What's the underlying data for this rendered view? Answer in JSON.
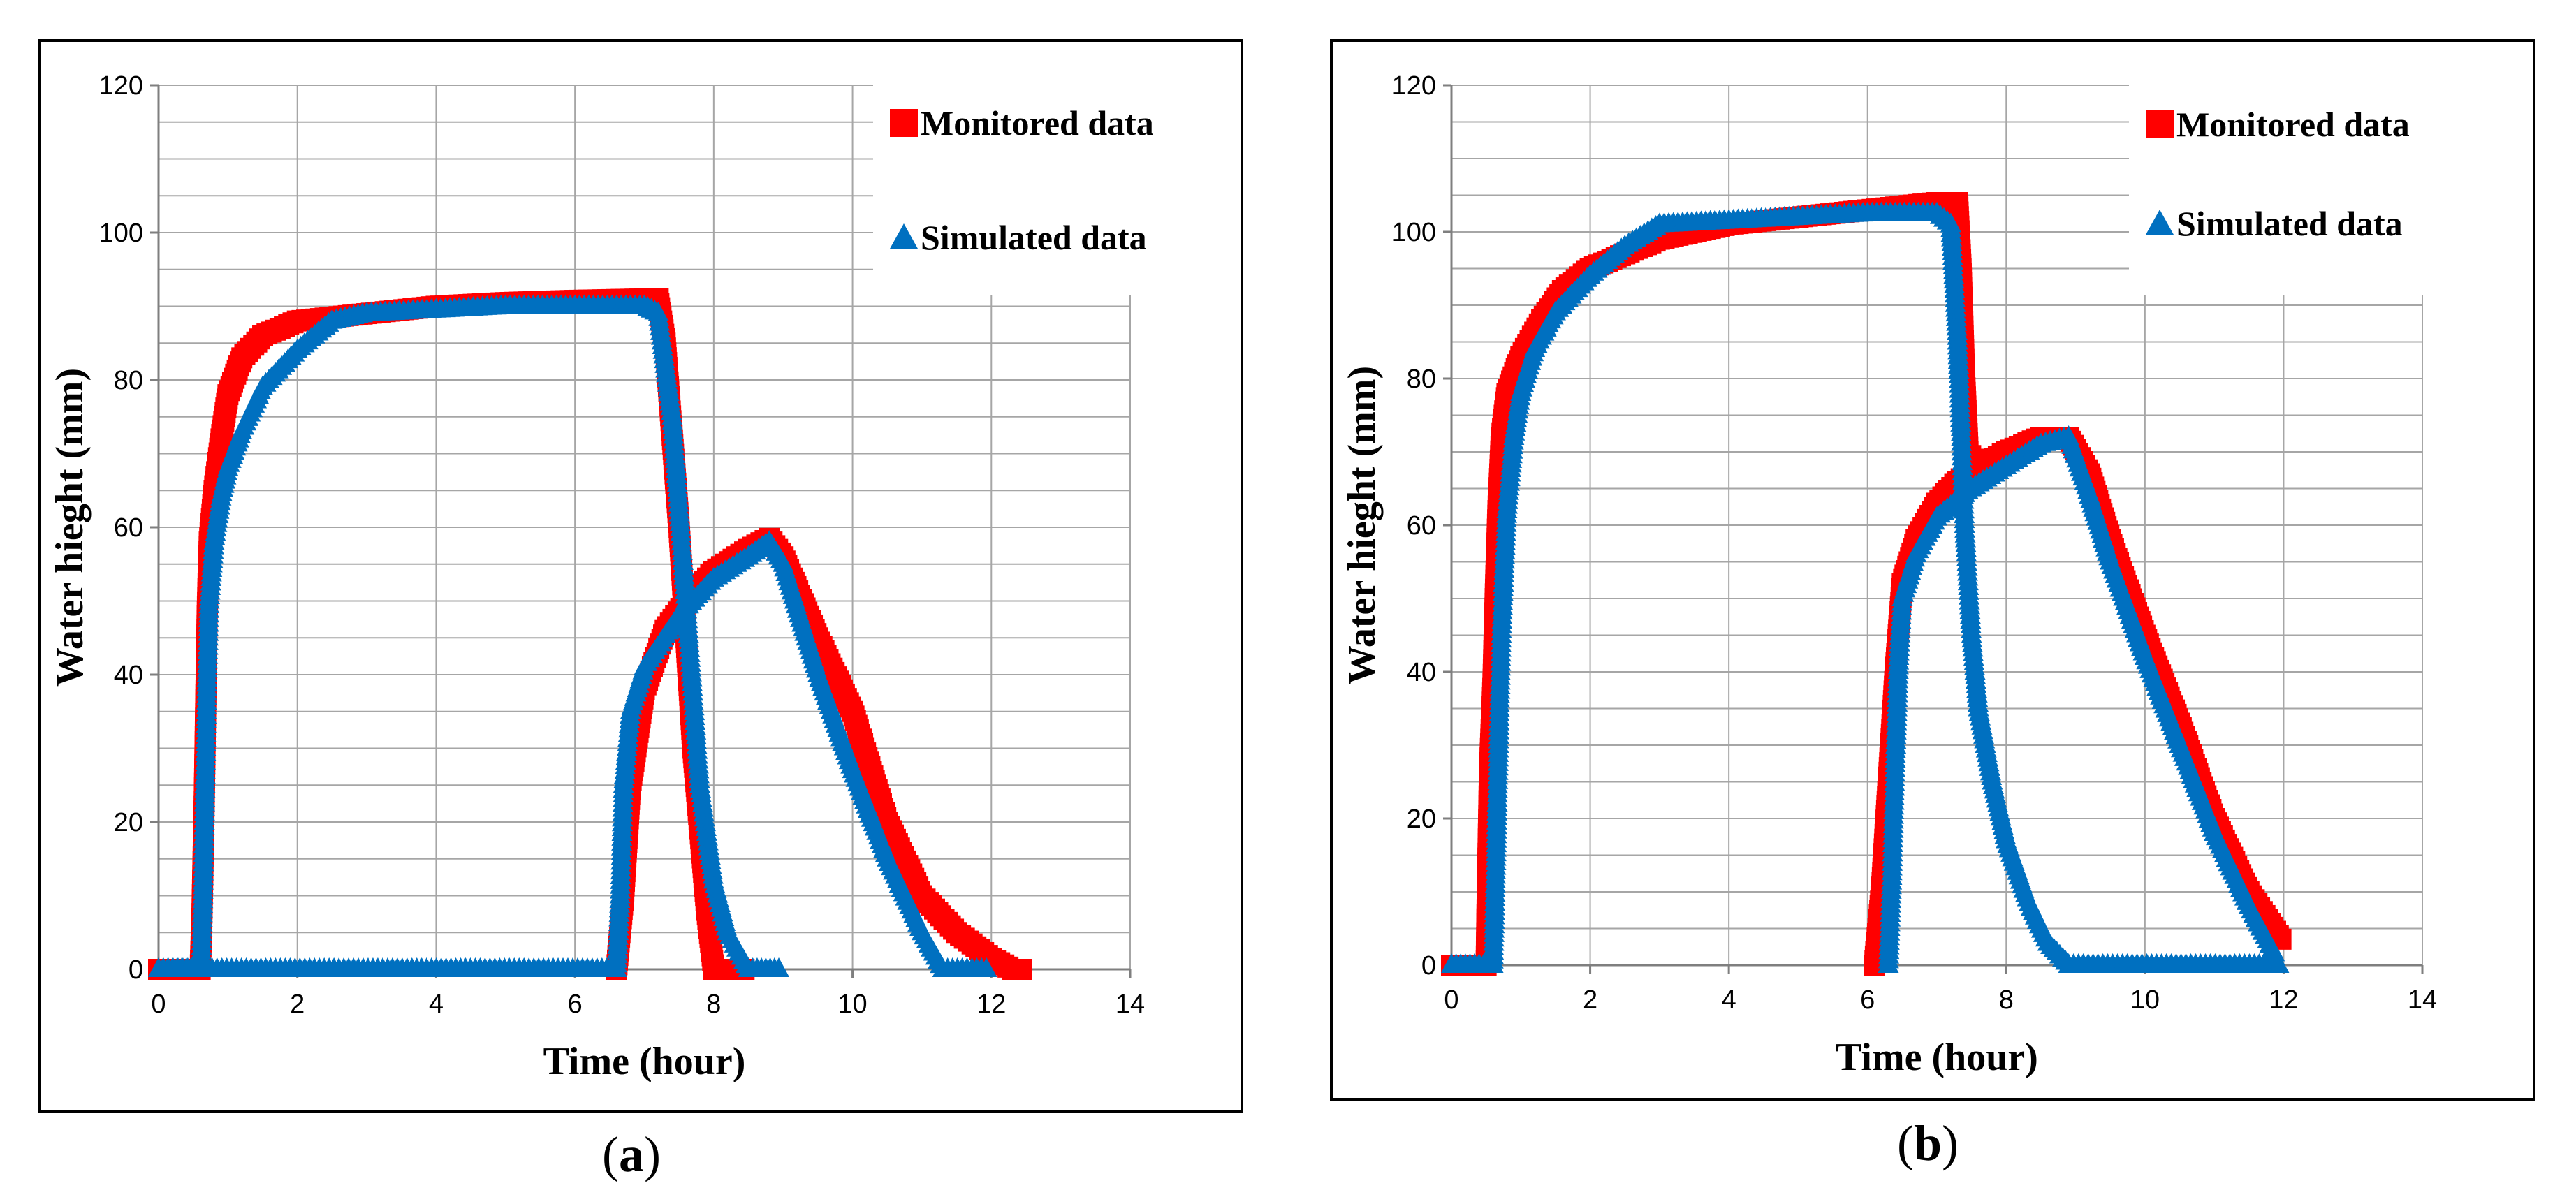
{
  "colors": {
    "monitored": "#ff0000",
    "simulated": "#0070c0",
    "grid": "#a6a6a6",
    "axis": "#7f7f7f"
  },
  "panels": [
    {
      "caption_open": "(",
      "caption_letter": "a",
      "caption_close": ")"
    },
    {
      "caption_open": "(",
      "caption_letter": "b",
      "caption_close": ")"
    }
  ],
  "chart_data": [
    {
      "type": "scatter",
      "title": "",
      "xlabel": "Time (hour)",
      "ylabel": "Water hieght (mm)",
      "xlim": [
        0,
        14
      ],
      "ylim": [
        0,
        120
      ],
      "xticks": [
        "0",
        "2",
        "4",
        "6",
        "8",
        "10",
        "12",
        "14"
      ],
      "yticks": [
        "0",
        "20",
        "40",
        "60",
        "80",
        "100",
        "120"
      ],
      "minor_y_step": 5,
      "legend": {
        "position": "top-right",
        "entries": [
          "Monitored data",
          "Simulated data"
        ]
      },
      "series": [
        {
          "name": "Monitored data",
          "marker": "square",
          "color": "#ff0000",
          "group": "rise",
          "points": [
            [
              0,
              0
            ],
            [
              0.6,
              0
            ],
            [
              0.62,
              5
            ],
            [
              0.64,
              14
            ],
            [
              0.66,
              24
            ],
            [
              0.68,
              36
            ],
            [
              0.7,
              48
            ],
            [
              0.73,
              58
            ],
            [
              0.8,
              65
            ],
            [
              0.9,
              72
            ],
            [
              1.0,
              78
            ],
            [
              1.2,
              83
            ],
            [
              1.5,
              86
            ],
            [
              2,
              88
            ],
            [
              3,
              89
            ],
            [
              4,
              90
            ],
            [
              5,
              90.5
            ],
            [
              6,
              90.8
            ],
            [
              7,
              91
            ],
            [
              7.2,
              91
            ],
            [
              7.3,
              85
            ],
            [
              7.5,
              60
            ],
            [
              7.7,
              30
            ],
            [
              7.9,
              8
            ],
            [
              8.0,
              0
            ],
            [
              8.5,
              0
            ]
          ]
        },
        {
          "name": "Monitored data",
          "marker": "square",
          "color": "#ff0000",
          "group": "outflow",
          "points": [
            [
              6.6,
              0
            ],
            [
              6.7,
              10
            ],
            [
              6.8,
              25
            ],
            [
              7.0,
              38
            ],
            [
              7.3,
              46
            ],
            [
              7.6,
              50
            ],
            [
              8,
              54
            ],
            [
              8.5,
              57
            ],
            [
              8.8,
              58.5
            ],
            [
              9.0,
              56
            ],
            [
              9.5,
              45
            ],
            [
              10,
              35
            ],
            [
              10.5,
              20
            ],
            [
              11,
              10
            ],
            [
              11.5,
              5
            ],
            [
              12,
              1.5
            ],
            [
              12.3,
              0
            ],
            [
              12.5,
              0
            ]
          ]
        },
        {
          "name": "Simulated data",
          "marker": "triangle",
          "color": "#0070c0",
          "group": "rise",
          "points": [
            [
              0,
              0
            ],
            [
              0.6,
              0
            ],
            [
              0.62,
              3
            ],
            [
              0.64,
              10
            ],
            [
              0.66,
              20
            ],
            [
              0.68,
              30
            ],
            [
              0.7,
              40
            ],
            [
              0.73,
              50
            ],
            [
              0.8,
              58
            ],
            [
              0.9,
              64
            ],
            [
              1.0,
              68
            ],
            [
              1.2,
              73
            ],
            [
              1.5,
              79
            ],
            [
              2,
              84
            ],
            [
              2.5,
              88
            ],
            [
              3,
              89
            ],
            [
              4,
              89.5
            ],
            [
              5,
              90
            ],
            [
              6,
              90
            ],
            [
              7,
              90
            ],
            [
              7.2,
              89
            ],
            [
              7.4,
              75
            ],
            [
              7.6,
              50
            ],
            [
              7.8,
              25
            ],
            [
              8.0,
              12
            ],
            [
              8.2,
              5
            ],
            [
              8.5,
              0
            ],
            [
              9,
              0
            ]
          ]
        },
        {
          "name": "Simulated data",
          "marker": "triangle",
          "color": "#0070c0",
          "group": "outflow",
          "points": [
            [
              0,
              0
            ],
            [
              6.6,
              0
            ],
            [
              6.65,
              10
            ],
            [
              6.7,
              25
            ],
            [
              6.8,
              35
            ],
            [
              7.0,
              41
            ],
            [
              7.5,
              48
            ],
            [
              8,
              53
            ],
            [
              8.5,
              56
            ],
            [
              8.8,
              58
            ],
            [
              9.0,
              55
            ],
            [
              9.5,
              40
            ],
            [
              10,
              27
            ],
            [
              10.5,
              15
            ],
            [
              11,
              5
            ],
            [
              11.3,
              0
            ],
            [
              12,
              0
            ]
          ]
        }
      ]
    },
    {
      "type": "scatter",
      "title": "",
      "xlabel": "Time (hour)",
      "ylabel": "Water hieght (mm)",
      "xlim": [
        0,
        14
      ],
      "ylim": [
        0,
        120
      ],
      "xticks": [
        "0",
        "2",
        "4",
        "6",
        "8",
        "10",
        "12",
        "14"
      ],
      "yticks": [
        "0",
        "20",
        "40",
        "60",
        "80",
        "100",
        "120"
      ],
      "minor_y_step": 5,
      "legend": {
        "position": "top-right",
        "entries": [
          "Monitored data",
          "Simulated data"
        ]
      },
      "series": [
        {
          "name": "Monitored data",
          "marker": "square",
          "color": "#ff0000",
          "group": "rise",
          "points": [
            [
              0,
              0
            ],
            [
              0.5,
              0
            ],
            [
              0.52,
              12
            ],
            [
              0.55,
              27
            ],
            [
              0.58,
              34
            ],
            [
              0.6,
              39
            ],
            [
              0.63,
              50
            ],
            [
              0.67,
              62
            ],
            [
              0.72,
              72
            ],
            [
              0.8,
              78
            ],
            [
              1.0,
              83
            ],
            [
              1.3,
              88
            ],
            [
              1.6,
              92
            ],
            [
              2,
              95
            ],
            [
              2.5,
              97
            ],
            [
              3,
              99
            ],
            [
              4,
              101
            ],
            [
              5,
              102
            ],
            [
              6,
              103
            ],
            [
              7,
              104
            ],
            [
              7.3,
              104
            ],
            [
              7.35,
              95
            ],
            [
              7.4,
              80
            ],
            [
              7.45,
              70
            ],
            [
              7.6,
              68
            ],
            [
              8,
              70
            ],
            [
              8.5,
              72
            ],
            [
              8.9,
              72
            ],
            [
              9.2,
              67
            ],
            [
              9.5,
              58
            ],
            [
              10,
              45
            ],
            [
              10.5,
              33
            ],
            [
              11,
              20
            ],
            [
              11.5,
              10
            ],
            [
              12,
              3
            ]
          ]
        },
        {
          "name": "Monitored data",
          "marker": "square",
          "color": "#ff0000",
          "group": "outflow",
          "points": [
            [
              6.1,
              0
            ],
            [
              6.2,
              10
            ],
            [
              6.3,
              25
            ],
            [
              6.4,
              40
            ],
            [
              6.5,
              52
            ],
            [
              6.7,
              58
            ],
            [
              7,
              63
            ],
            [
              7.3,
              66
            ],
            [
              7.6,
              68
            ]
          ]
        },
        {
          "name": "Simulated data",
          "marker": "triangle",
          "color": "#0070c0",
          "group": "rise",
          "points": [
            [
              0,
              0
            ],
            [
              0.6,
              0
            ],
            [
              0.62,
              6
            ],
            [
              0.64,
              14
            ],
            [
              0.66,
              22
            ],
            [
              0.68,
              30
            ],
            [
              0.7,
              38
            ],
            [
              0.72,
              45
            ],
            [
              0.75,
              52
            ],
            [
              0.8,
              62
            ],
            [
              0.9,
              72
            ],
            [
              1.0,
              78
            ],
            [
              1.2,
              84
            ],
            [
              1.5,
              89
            ],
            [
              2,
              94
            ],
            [
              2.5,
              98
            ],
            [
              3,
              101
            ],
            [
              4,
              101.5
            ],
            [
              5,
              102
            ],
            [
              6,
              102.5
            ],
            [
              7,
              102.5
            ],
            [
              7.2,
              101
            ],
            [
              7.3,
              85
            ],
            [
              7.4,
              60
            ],
            [
              7.5,
              45
            ],
            [
              7.6,
              35
            ],
            [
              7.8,
              25
            ],
            [
              8,
              17
            ],
            [
              8.3,
              9
            ],
            [
              8.6,
              3
            ],
            [
              8.9,
              0
            ],
            [
              12,
              0
            ]
          ]
        },
        {
          "name": "Simulated data",
          "marker": "triangle",
          "color": "#0070c0",
          "group": "outflow",
          "points": [
            [
              6.3,
              0
            ],
            [
              6.35,
              12
            ],
            [
              6.4,
              28
            ],
            [
              6.45,
              42
            ],
            [
              6.5,
              50
            ],
            [
              6.7,
              56
            ],
            [
              7,
              61
            ],
            [
              7.5,
              65
            ],
            [
              8,
              68
            ],
            [
              8.5,
              71
            ],
            [
              8.9,
              72
            ],
            [
              9.2,
              64
            ],
            [
              9.5,
              55
            ],
            [
              10,
              42
            ],
            [
              10.5,
              30
            ],
            [
              11,
              18
            ],
            [
              11.5,
              8
            ],
            [
              11.9,
              1
            ]
          ]
        }
      ]
    }
  ]
}
